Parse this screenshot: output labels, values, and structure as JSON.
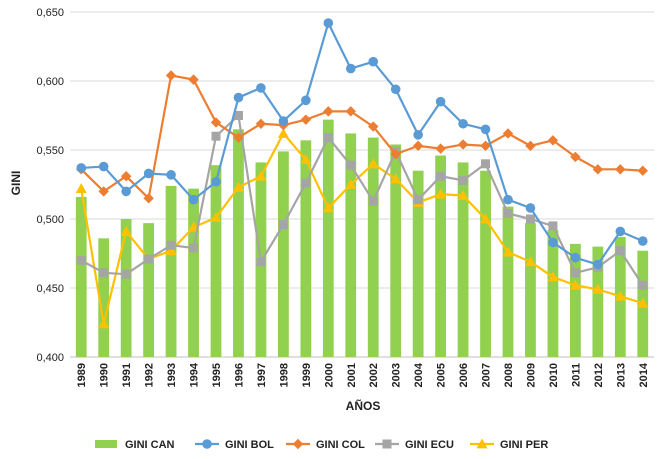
{
  "chart_data": {
    "type": "bar",
    "categories": [
      "1989",
      "1990",
      "1991",
      "1992",
      "1993",
      "1994",
      "1995",
      "1996",
      "1997",
      "1998",
      "1999",
      "2000",
      "2001",
      "2002",
      "2003",
      "2004",
      "2005",
      "2006",
      "2007",
      "2008",
      "2009",
      "2010",
      "2011",
      "2012",
      "2013",
      "2014"
    ],
    "xlabel": "AÑOS",
    "ylabel": "GINI",
    "ylim": [
      0.4,
      0.65
    ],
    "yticks": [
      0.4,
      0.45,
      0.5,
      0.55,
      0.6,
      0.65
    ],
    "ytick_labels": [
      "0,400",
      "0,450",
      "0,500",
      "0,550",
      "0,600",
      "0,650"
    ],
    "grid": true,
    "legend_position": "bottom",
    "series": [
      {
        "name": "GINI CAN",
        "kind": "bar",
        "color": "#92d050",
        "values": [
          0.516,
          0.486,
          0.5,
          0.497,
          0.524,
          0.522,
          0.539,
          0.565,
          0.541,
          0.549,
          0.557,
          0.572,
          0.562,
          0.559,
          0.554,
          0.535,
          0.546,
          0.541,
          0.535,
          0.509,
          0.497,
          0.492,
          0.482,
          0.48,
          0.487,
          0.477
        ]
      },
      {
        "name": "GINI BOL",
        "kind": "line",
        "color": "#5b9bd5",
        "marker": "circle",
        "values": [
          0.537,
          0.538,
          0.52,
          0.533,
          0.532,
          0.514,
          0.527,
          0.588,
          0.595,
          0.571,
          0.586,
          0.642,
          0.609,
          0.614,
          0.594,
          0.561,
          0.585,
          0.569,
          0.565,
          0.514,
          0.508,
          0.483,
          0.472,
          0.467,
          0.491,
          0.484
        ]
      },
      {
        "name": "GINI COL",
        "kind": "line",
        "color": "#ed7d31",
        "marker": "diamond",
        "values": [
          0.536,
          0.52,
          0.531,
          0.515,
          0.604,
          0.601,
          0.57,
          0.559,
          0.569,
          0.568,
          0.572,
          0.578,
          0.578,
          0.567,
          0.547,
          0.553,
          0.551,
          0.554,
          0.553,
          0.562,
          0.553,
          0.557,
          0.545,
          0.536,
          0.536,
          0.535
        ]
      },
      {
        "name": "GINI ECU",
        "kind": "line",
        "color": "#a5a5a5",
        "marker": "square",
        "values": [
          0.47,
          0.461,
          0.46,
          0.471,
          0.481,
          0.479,
          0.56,
          0.575,
          0.469,
          0.496,
          0.526,
          0.559,
          0.539,
          0.513,
          0.549,
          0.514,
          0.531,
          0.528,
          0.54,
          0.504,
          0.5,
          0.495,
          0.461,
          0.465,
          0.477,
          0.452
        ]
      },
      {
        "name": "GINI PER",
        "kind": "line",
        "color": "#ffc000",
        "marker": "triangle",
        "values": [
          0.522,
          0.424,
          0.491,
          0.471,
          0.477,
          0.494,
          0.501,
          0.523,
          0.531,
          0.562,
          0.543,
          0.508,
          0.525,
          0.54,
          0.529,
          0.512,
          0.518,
          0.517,
          0.5,
          0.476,
          0.469,
          0.458,
          0.452,
          0.449,
          0.444,
          0.439
        ]
      }
    ]
  }
}
